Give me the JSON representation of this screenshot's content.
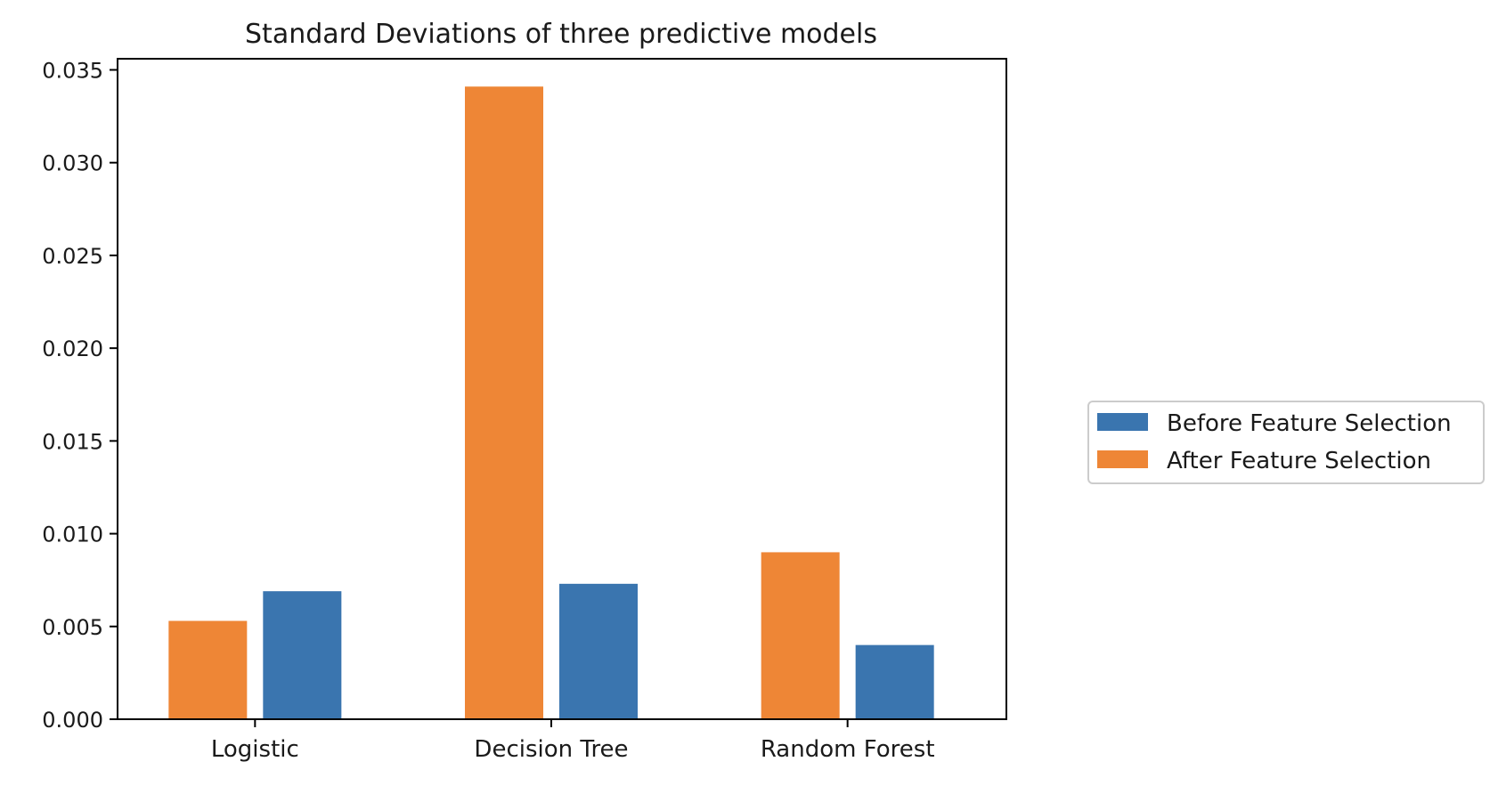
{
  "chart_data": {
    "type": "bar",
    "title": "Standard Deviations of three predictive models",
    "xlabel": "",
    "ylabel": "",
    "categories": [
      "Logistic",
      "Decision Tree",
      "Random Forest"
    ],
    "ylim": [
      0,
      0.0356
    ],
    "yticks": [
      "0.000",
      "0.005",
      "0.010",
      "0.015",
      "0.020",
      "0.025",
      "0.030",
      "0.035"
    ],
    "ytick_values": [
      0,
      0.005,
      0.01,
      0.015,
      0.02,
      0.025,
      0.03,
      0.035
    ],
    "grid": false,
    "legend_position": "center-right-outside",
    "series": [
      {
        "name": "After Feature Selection",
        "color": "#ee8636",
        "values": [
          0.0053,
          0.0341,
          0.009
        ]
      },
      {
        "name": "Before Feature Selection",
        "color": "#3a75af",
        "values": [
          0.0069,
          0.0073,
          0.004
        ]
      }
    ],
    "legend_order": [
      "Before Feature Selection",
      "After Feature Selection"
    ]
  }
}
